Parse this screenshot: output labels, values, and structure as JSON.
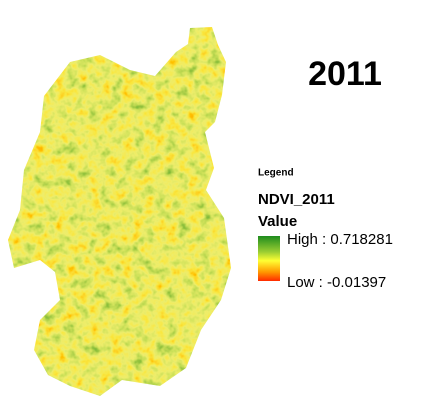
{
  "title": "2011",
  "legend": {
    "heading": "Legend",
    "layer": "NDVI_2011",
    "field": "Value",
    "high": "High : 0.718281",
    "low": "Low : -0.01397"
  }
}
